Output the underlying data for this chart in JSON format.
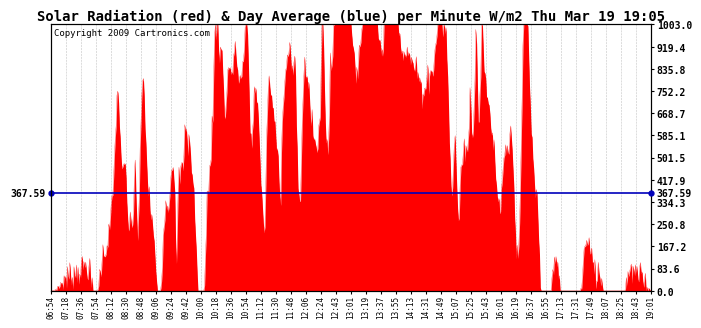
{
  "title": "Solar Radiation (red) & Day Average (blue) per Minute W/m2 Thu Mar 19 19:05",
  "copyright": "Copyright 2009 Cartronics.com",
  "avg_value": 367.59,
  "ymax": 1003.0,
  "ymin": 0.0,
  "bar_color": "#ff0000",
  "line_color": "#0000bb",
  "background_color": "#ffffff",
  "plot_bg_color": "#ffffff",
  "grid_color": "#999999",
  "title_fontsize": 10,
  "copyright_fontsize": 6.5,
  "x_tick_labels": [
    "06:54",
    "07:18",
    "07:36",
    "07:54",
    "08:12",
    "08:30",
    "08:48",
    "09:06",
    "09:24",
    "09:42",
    "10:00",
    "10:18",
    "10:36",
    "10:54",
    "11:12",
    "11:30",
    "11:48",
    "12:06",
    "12:24",
    "12:43",
    "13:01",
    "13:19",
    "13:37",
    "13:55",
    "14:13",
    "14:31",
    "14:49",
    "15:07",
    "15:25",
    "15:43",
    "16:01",
    "16:19",
    "16:37",
    "16:55",
    "17:13",
    "17:31",
    "17:49",
    "18:07",
    "18:25",
    "18:43",
    "19:01"
  ],
  "ytick_vals": [
    0.0,
    83.6,
    167.2,
    250.8,
    334.3,
    417.9,
    501.5,
    585.1,
    668.7,
    752.2,
    835.8,
    919.4,
    1003.0
  ],
  "ytick_labels": [
    "0.0",
    "83.6",
    "167.2",
    "250.8",
    "334.3",
    "417.9",
    "501.5",
    "585.1",
    "668.7",
    "752.2",
    "835.8",
    "919.4",
    "1003.0"
  ],
  "n_points": 727
}
